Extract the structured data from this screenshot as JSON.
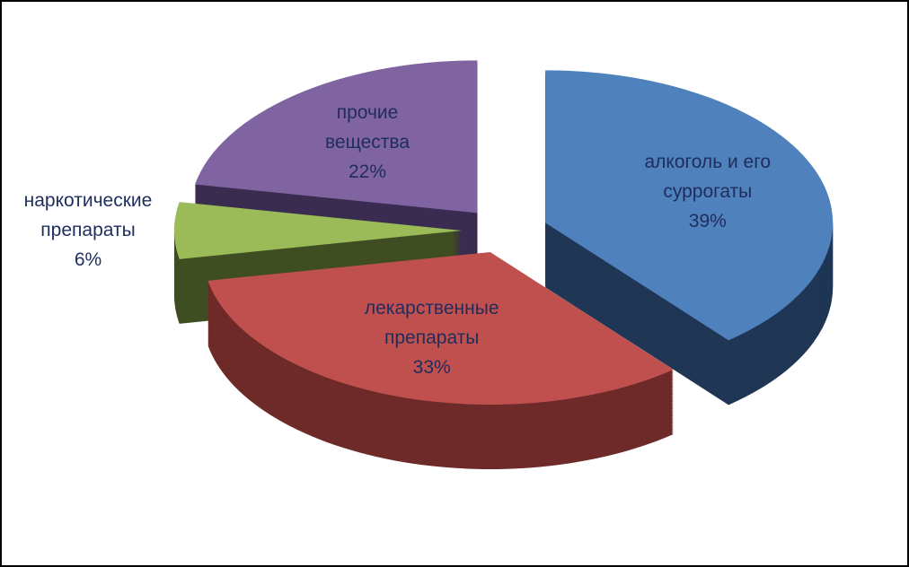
{
  "chart_data": {
    "type": "pie3d",
    "categories": [
      "алкоголь и его суррогаты",
      "лекарственные препараты",
      "наркотические препараты",
      "прочие вещества"
    ],
    "values": [
      39,
      33,
      6,
      22
    ],
    "value_labels": [
      "39%",
      "33%",
      "6%",
      "22%"
    ],
    "colors": [
      "#4f81bd",
      "#c0504d",
      "#9bbb59",
      "#8064a2"
    ],
    "side_colors": [
      "#1f3655",
      "#6e2a28",
      "#3f4d22",
      "#3a2c50"
    ]
  }
}
